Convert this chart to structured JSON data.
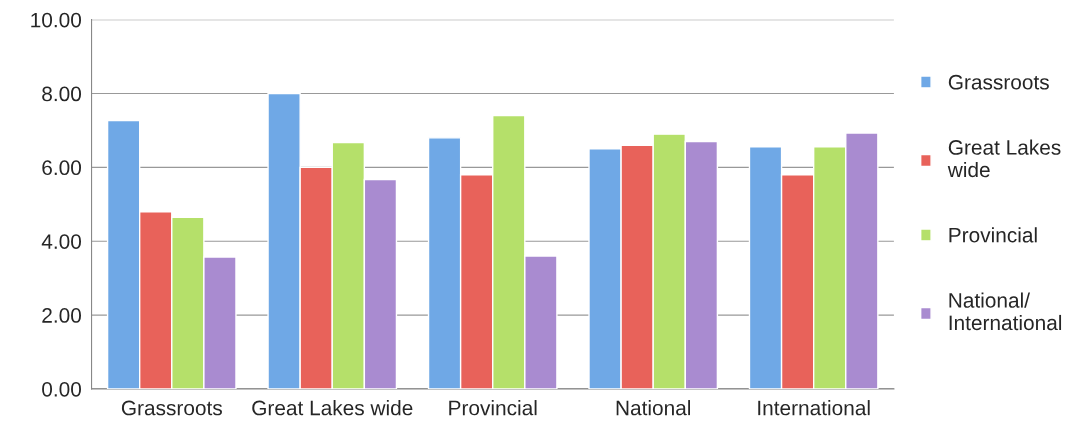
{
  "chart_data": {
    "type": "bar",
    "categories": [
      "Grassroots",
      "Great Lakes wide",
      "Provincial",
      "National",
      "International"
    ],
    "series": [
      {
        "name": "Grassroots",
        "color": "#6fa8e6",
        "values": [
          7.27,
          8.0,
          6.8,
          6.5,
          6.56
        ]
      },
      {
        "name": "Great Lakes\nwide",
        "color": "#e8625a",
        "values": [
          4.8,
          6.0,
          5.8,
          6.6,
          5.8
        ]
      },
      {
        "name": "Provincial",
        "color": "#b5e06a",
        "values": [
          4.65,
          6.67,
          7.4,
          6.9,
          6.56
        ]
      },
      {
        "name": "National/\nInternational",
        "color": "#a98bd0",
        "values": [
          3.57,
          5.67,
          3.6,
          6.7,
          6.93
        ]
      }
    ],
    "ylim": [
      0,
      10
    ],
    "yticks": [
      {
        "value": 0,
        "label": "0.00"
      },
      {
        "value": 2,
        "label": "2.00"
      },
      {
        "value": 4,
        "label": "4.00"
      },
      {
        "value": 6,
        "label": "6.00"
      },
      {
        "value": 8,
        "label": "8.00"
      },
      {
        "value": 10,
        "label": "10.00"
      }
    ],
    "grid": "y",
    "legend": "right"
  }
}
